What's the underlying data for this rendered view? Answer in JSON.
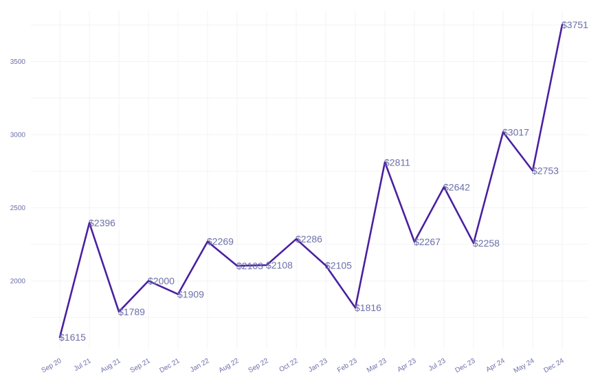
{
  "chart_data": {
    "type": "line",
    "title": "",
    "xlabel": "",
    "ylabel": "",
    "categories": [
      "Sep 20",
      "Jul 21",
      "Aug 21",
      "Sep 21",
      "Dec 21",
      "Jan 22",
      "Aug 22",
      "Sep 22",
      "Oct 22",
      "Jan 23",
      "Feb 23",
      "Mar 23",
      "Apr 23",
      "Jul 23",
      "Dec 23",
      "Apr 24",
      "May 24",
      "Dec 24"
    ],
    "values": [
      1615,
      2396,
      1789,
      2000,
      1909,
      2269,
      2103,
      2108,
      2286,
      2105,
      1816,
      2811,
      2267,
      2642,
      2258,
      3017,
      2753,
      3751
    ],
    "data_labels": [
      "$1615",
      "$2396",
      "$1789",
      "$2000",
      "$1909",
      "$2269",
      "$2103",
      "$2108",
      "$2286",
      "$2105",
      "$1816",
      "$2811",
      "$2267",
      "$2642",
      "$2258",
      "$3017",
      "$2753",
      "$3751"
    ],
    "yticks": [
      2000,
      2500,
      3000,
      3500
    ],
    "ytick_labels": [
      "2000",
      "2500",
      "3000",
      "3500"
    ],
    "ylim": [
      1500,
      3800
    ],
    "grid": true,
    "legend": "none",
    "colors": {
      "line": "#4a1fa0",
      "text": "#6b6fa8",
      "grid": "#f3f3f8"
    }
  }
}
